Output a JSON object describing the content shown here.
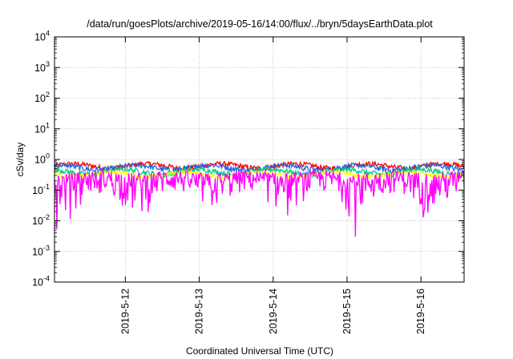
{
  "chart_data": {
    "type": "line",
    "title": "/data/run/goesPlots/archive/2019-05-16/14:00/flux/../bryn/5daysEarthData.plot",
    "xlabel": "Coordinated Universal Time (UTC)",
    "ylabel": "cSv/day",
    "yscale": "log",
    "ylim": [
      0.0001,
      10000
    ],
    "y_ticks": [
      {
        "value": 0.0001,
        "base": "10",
        "exp": "-4"
      },
      {
        "value": 0.001,
        "base": "10",
        "exp": "-3"
      },
      {
        "value": 0.01,
        "base": "10",
        "exp": "-2"
      },
      {
        "value": 0.1,
        "base": "10",
        "exp": "-1"
      },
      {
        "value": 1,
        "base": "10",
        "exp": "0"
      },
      {
        "value": 10,
        "base": "10",
        "exp": "1"
      },
      {
        "value": 100,
        "base": "10",
        "exp": "2"
      },
      {
        "value": 1000,
        "base": "10",
        "exp": "3"
      },
      {
        "value": 10000,
        "base": "10",
        "exp": "4"
      }
    ],
    "xlim": [
      "2019-05-11 01:00",
      "2019-05-16 14:00"
    ],
    "x_ticks": [
      {
        "value": "2019-05-12 00:00",
        "label": "2019-5-12"
      },
      {
        "value": "2019-05-13 00:00",
        "label": "2019-5-13"
      },
      {
        "value": "2019-05-14 00:00",
        "label": "2019-5-14"
      },
      {
        "value": "2019-05-15 00:00",
        "label": "2019-5-15"
      },
      {
        "value": "2019-05-16 00:00",
        "label": "2019-5-16"
      }
    ],
    "grid": true,
    "series": [
      {
        "color": "#ff0000",
        "level": 0.62,
        "spread": 0.12
      },
      {
        "color": "#2266dd",
        "level": 0.55,
        "spread": 0.11
      },
      {
        "color": "#00cc88",
        "level": 0.4,
        "spread": 0.08
      },
      {
        "color": "#ffff00",
        "level": 0.33,
        "spread": 0.05
      },
      {
        "color": "#ff00ff",
        "level": 0.22,
        "spread": 0.18
      }
    ]
  }
}
